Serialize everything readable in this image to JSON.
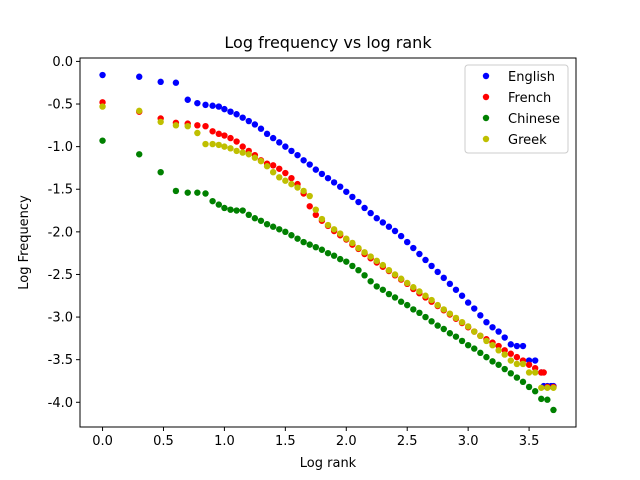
{
  "chart_data": {
    "type": "scatter",
    "title": "Log frequency vs log rank",
    "xlabel": "Log rank",
    "ylabel": "Log Frequency",
    "xlim": [
      -0.185,
      3.885
    ],
    "ylim": [
      -4.29,
      0.04
    ],
    "xticks": [
      "0.0",
      "0.5",
      "1.0",
      "1.5",
      "2.0",
      "2.5",
      "3.0",
      "3.5"
    ],
    "yticks": [
      "0.0",
      "-0.5",
      "-1.0",
      "-1.5",
      "-2.0",
      "-2.5",
      "-3.0",
      "-3.5",
      "-4.0"
    ],
    "grid": false,
    "legend_position": "top-right",
    "series": [
      {
        "name": "English",
        "color": "#0000ff",
        "points": [
          [
            0.0,
            -0.16
          ],
          [
            0.301,
            -0.18
          ],
          [
            0.477,
            -0.24
          ],
          [
            0.602,
            -0.25
          ],
          [
            0.699,
            -0.45
          ],
          [
            0.778,
            -0.49
          ],
          [
            0.845,
            -0.51
          ],
          [
            0.903,
            -0.52
          ],
          [
            0.954,
            -0.53
          ],
          [
            1.0,
            -0.56
          ],
          [
            1.05,
            -0.59
          ],
          [
            1.1,
            -0.62
          ],
          [
            1.15,
            -0.66
          ],
          [
            1.2,
            -0.7
          ],
          [
            1.25,
            -0.74
          ],
          [
            1.3,
            -0.79
          ],
          [
            1.35,
            -0.85
          ],
          [
            1.4,
            -0.9
          ],
          [
            1.45,
            -0.95
          ],
          [
            1.5,
            -1.0
          ],
          [
            1.55,
            -1.05
          ],
          [
            1.6,
            -1.1
          ],
          [
            1.65,
            -1.16
          ],
          [
            1.7,
            -1.21
          ],
          [
            1.75,
            -1.27
          ],
          [
            1.8,
            -1.32
          ],
          [
            1.85,
            -1.37
          ],
          [
            1.9,
            -1.42
          ],
          [
            1.95,
            -1.47
          ],
          [
            2.0,
            -1.53
          ],
          [
            2.05,
            -1.59
          ],
          [
            2.1,
            -1.65
          ],
          [
            2.15,
            -1.72
          ],
          [
            2.2,
            -1.78
          ],
          [
            2.25,
            -1.84
          ],
          [
            2.3,
            -1.89
          ],
          [
            2.35,
            -1.94
          ],
          [
            2.4,
            -1.99
          ],
          [
            2.45,
            -2.05
          ],
          [
            2.5,
            -2.12
          ],
          [
            2.55,
            -2.19
          ],
          [
            2.6,
            -2.26
          ],
          [
            2.65,
            -2.33
          ],
          [
            2.7,
            -2.4
          ],
          [
            2.75,
            -2.47
          ],
          [
            2.8,
            -2.54
          ],
          [
            2.85,
            -2.61
          ],
          [
            2.9,
            -2.68
          ],
          [
            2.95,
            -2.75
          ],
          [
            3.0,
            -2.83
          ],
          [
            3.05,
            -2.9
          ],
          [
            3.1,
            -2.98
          ],
          [
            3.15,
            -3.06
          ],
          [
            3.2,
            -3.12
          ],
          [
            3.25,
            -3.17
          ],
          [
            3.3,
            -3.24
          ],
          [
            3.35,
            -3.32
          ],
          [
            3.4,
            -3.34
          ],
          [
            3.45,
            -3.34
          ],
          [
            3.5,
            -3.51
          ],
          [
            3.55,
            -3.51
          ],
          [
            3.6,
            -3.65
          ],
          [
            3.62,
            -3.81
          ],
          [
            3.65,
            -3.81
          ],
          [
            3.68,
            -3.81
          ],
          [
            3.7,
            -3.81
          ]
        ]
      },
      {
        "name": "French",
        "color": "#ff0000",
        "points": [
          [
            0.0,
            -0.48
          ],
          [
            0.301,
            -0.59
          ],
          [
            0.477,
            -0.67
          ],
          [
            0.602,
            -0.72
          ],
          [
            0.699,
            -0.73
          ],
          [
            0.778,
            -0.75
          ],
          [
            0.845,
            -0.76
          ],
          [
            0.903,
            -0.82
          ],
          [
            0.954,
            -0.85
          ],
          [
            1.0,
            -0.87
          ],
          [
            1.05,
            -0.9
          ],
          [
            1.1,
            -0.94
          ],
          [
            1.15,
            -1.0
          ],
          [
            1.2,
            -1.05
          ],
          [
            1.25,
            -1.1
          ],
          [
            1.3,
            -1.16
          ],
          [
            1.35,
            -1.2
          ],
          [
            1.4,
            -1.22
          ],
          [
            1.45,
            -1.26
          ],
          [
            1.5,
            -1.31
          ],
          [
            1.55,
            -1.37
          ],
          [
            1.6,
            -1.44
          ],
          [
            1.65,
            -1.55
          ],
          [
            1.7,
            -1.7
          ],
          [
            1.75,
            -1.8
          ],
          [
            1.8,
            -1.87
          ],
          [
            1.85,
            -1.93
          ],
          [
            1.9,
            -1.99
          ],
          [
            1.95,
            -2.04
          ],
          [
            2.0,
            -2.09
          ],
          [
            2.05,
            -2.15
          ],
          [
            2.1,
            -2.2
          ],
          [
            2.15,
            -2.26
          ],
          [
            2.2,
            -2.31
          ],
          [
            2.25,
            -2.36
          ],
          [
            2.3,
            -2.41
          ],
          [
            2.35,
            -2.46
          ],
          [
            2.4,
            -2.51
          ],
          [
            2.45,
            -2.56
          ],
          [
            2.5,
            -2.61
          ],
          [
            2.55,
            -2.67
          ],
          [
            2.6,
            -2.72
          ],
          [
            2.65,
            -2.77
          ],
          [
            2.7,
            -2.82
          ],
          [
            2.75,
            -2.87
          ],
          [
            2.8,
            -2.92
          ],
          [
            2.85,
            -2.97
          ],
          [
            2.9,
            -3.02
          ],
          [
            2.95,
            -3.07
          ],
          [
            3.0,
            -3.12
          ],
          [
            3.05,
            -3.17
          ],
          [
            3.1,
            -3.22
          ],
          [
            3.15,
            -3.26
          ],
          [
            3.2,
            -3.3
          ],
          [
            3.25,
            -3.34
          ],
          [
            3.3,
            -3.39
          ],
          [
            3.35,
            -3.43
          ],
          [
            3.4,
            -3.47
          ],
          [
            3.45,
            -3.51
          ],
          [
            3.5,
            -3.56
          ],
          [
            3.55,
            -3.6
          ],
          [
            3.6,
            -3.65
          ],
          [
            3.62,
            -3.65
          ],
          [
            3.65,
            -3.82
          ],
          [
            3.7,
            -3.82
          ]
        ]
      },
      {
        "name": "Chinese",
        "color": "#008000",
        "points": [
          [
            0.0,
            -0.93
          ],
          [
            0.301,
            -1.09
          ],
          [
            0.477,
            -1.3
          ],
          [
            0.602,
            -1.52
          ],
          [
            0.699,
            -1.54
          ],
          [
            0.778,
            -1.54
          ],
          [
            0.845,
            -1.55
          ],
          [
            0.903,
            -1.64
          ],
          [
            0.954,
            -1.68
          ],
          [
            1.0,
            -1.72
          ],
          [
            1.05,
            -1.74
          ],
          [
            1.1,
            -1.75
          ],
          [
            1.15,
            -1.75
          ],
          [
            1.2,
            -1.8
          ],
          [
            1.25,
            -1.84
          ],
          [
            1.3,
            -1.87
          ],
          [
            1.35,
            -1.91
          ],
          [
            1.4,
            -1.94
          ],
          [
            1.45,
            -1.97
          ],
          [
            1.5,
            -2.0
          ],
          [
            1.55,
            -2.04
          ],
          [
            1.6,
            -2.08
          ],
          [
            1.65,
            -2.12
          ],
          [
            1.7,
            -2.15
          ],
          [
            1.75,
            -2.18
          ],
          [
            1.8,
            -2.21
          ],
          [
            1.85,
            -2.25
          ],
          [
            1.9,
            -2.28
          ],
          [
            1.95,
            -2.32
          ],
          [
            2.0,
            -2.35
          ],
          [
            2.05,
            -2.4
          ],
          [
            2.1,
            -2.45
          ],
          [
            2.15,
            -2.51
          ],
          [
            2.2,
            -2.58
          ],
          [
            2.25,
            -2.64
          ],
          [
            2.3,
            -2.68
          ],
          [
            2.35,
            -2.73
          ],
          [
            2.4,
            -2.77
          ],
          [
            2.45,
            -2.82
          ],
          [
            2.5,
            -2.86
          ],
          [
            2.55,
            -2.91
          ],
          [
            2.6,
            -2.95
          ],
          [
            2.65,
            -3.0
          ],
          [
            2.7,
            -3.05
          ],
          [
            2.75,
            -3.1
          ],
          [
            2.8,
            -3.14
          ],
          [
            2.85,
            -3.19
          ],
          [
            2.9,
            -3.23
          ],
          [
            2.95,
            -3.28
          ],
          [
            3.0,
            -3.33
          ],
          [
            3.05,
            -3.37
          ],
          [
            3.1,
            -3.42
          ],
          [
            3.15,
            -3.47
          ],
          [
            3.2,
            -3.52
          ],
          [
            3.25,
            -3.56
          ],
          [
            3.3,
            -3.61
          ],
          [
            3.35,
            -3.66
          ],
          [
            3.4,
            -3.71
          ],
          [
            3.45,
            -3.76
          ],
          [
            3.5,
            -3.82
          ],
          [
            3.55,
            -3.87
          ],
          [
            3.6,
            -3.96
          ],
          [
            3.65,
            -3.97
          ],
          [
            3.7,
            -4.09
          ]
        ]
      },
      {
        "name": "Greek",
        "color": "#bfbf00",
        "points": [
          [
            0.0,
            -0.53
          ],
          [
            0.301,
            -0.58
          ],
          [
            0.477,
            -0.71
          ],
          [
            0.602,
            -0.75
          ],
          [
            0.699,
            -0.76
          ],
          [
            0.778,
            -0.84
          ],
          [
            0.845,
            -0.97
          ],
          [
            0.903,
            -0.97
          ],
          [
            0.954,
            -0.98
          ],
          [
            1.0,
            -1.0
          ],
          [
            1.05,
            -1.02
          ],
          [
            1.1,
            -1.05
          ],
          [
            1.15,
            -1.07
          ],
          [
            1.2,
            -1.09
          ],
          [
            1.25,
            -1.13
          ],
          [
            1.3,
            -1.17
          ],
          [
            1.35,
            -1.23
          ],
          [
            1.4,
            -1.3
          ],
          [
            1.45,
            -1.36
          ],
          [
            1.5,
            -1.4
          ],
          [
            1.55,
            -1.44
          ],
          [
            1.6,
            -1.48
          ],
          [
            1.65,
            -1.52
          ],
          [
            1.7,
            -1.58
          ],
          [
            1.75,
            -1.74
          ],
          [
            1.8,
            -1.85
          ],
          [
            1.85,
            -1.92
          ],
          [
            1.9,
            -1.97
          ],
          [
            1.95,
            -2.02
          ],
          [
            2.0,
            -2.08
          ],
          [
            2.05,
            -2.13
          ],
          [
            2.1,
            -2.19
          ],
          [
            2.15,
            -2.24
          ],
          [
            2.2,
            -2.29
          ],
          [
            2.25,
            -2.34
          ],
          [
            2.3,
            -2.39
          ],
          [
            2.35,
            -2.45
          ],
          [
            2.4,
            -2.5
          ],
          [
            2.45,
            -2.55
          ],
          [
            2.5,
            -2.6
          ],
          [
            2.55,
            -2.65
          ],
          [
            2.6,
            -2.7
          ],
          [
            2.65,
            -2.75
          ],
          [
            2.7,
            -2.8
          ],
          [
            2.75,
            -2.86
          ],
          [
            2.8,
            -2.91
          ],
          [
            2.85,
            -2.96
          ],
          [
            2.9,
            -3.01
          ],
          [
            2.95,
            -3.06
          ],
          [
            3.0,
            -3.11
          ],
          [
            3.05,
            -3.17
          ],
          [
            3.1,
            -3.22
          ],
          [
            3.15,
            -3.28
          ],
          [
            3.2,
            -3.33
          ],
          [
            3.25,
            -3.39
          ],
          [
            3.3,
            -3.44
          ],
          [
            3.35,
            -3.51
          ],
          [
            3.4,
            -3.55
          ],
          [
            3.45,
            -3.55
          ],
          [
            3.5,
            -3.65
          ],
          [
            3.55,
            -3.65
          ],
          [
            3.6,
            -3.83
          ],
          [
            3.65,
            -3.83
          ],
          [
            3.7,
            -3.83
          ]
        ]
      }
    ]
  }
}
